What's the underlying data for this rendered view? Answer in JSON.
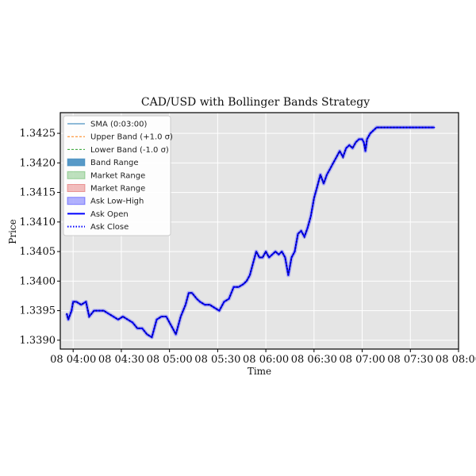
{
  "chart_data": {
    "type": "line",
    "title": "CAD/USD with Bollinger Bands Strategy",
    "xlabel": "Time",
    "ylabel": "Price",
    "x_range": [
      "03:52",
      "08:00"
    ],
    "ylim": [
      1.33885,
      1.34285
    ],
    "y_ticks": [
      1.339,
      1.3395,
      1.34,
      1.3405,
      1.341,
      1.3415,
      1.342,
      1.3425
    ],
    "y_tick_labels": [
      "1.3390",
      "1.3395",
      "1.3400",
      "1.3405",
      "1.3410",
      "1.3415",
      "1.3420",
      "1.3425"
    ],
    "x_ticks": [
      "04:00",
      "04:30",
      "05:00",
      "05:30",
      "06:00",
      "06:30",
      "07:00",
      "07:30",
      "08:00"
    ],
    "x_tick_labels": [
      "08 04:00",
      "08 04:30",
      "08 05:00",
      "08 05:30",
      "08 06:00",
      "08 06:30",
      "08 07:00",
      "08 07:30",
      "08 08:00"
    ],
    "grid": true,
    "legend_position": "top-left",
    "legend": [
      {
        "label": "SMA (0:03:00)",
        "style": "line",
        "color": "#1f77b4"
      },
      {
        "label": "Upper Band (+1.0 σ)",
        "style": "dashed",
        "color": "#ff7f0e"
      },
      {
        "label": "Lower Band (-1.0 σ)",
        "style": "dashed",
        "color": "#2ca02c"
      },
      {
        "label": "Band Range",
        "style": "patch",
        "color": "#1f77b4"
      },
      {
        "label": "Market Range",
        "style": "patch",
        "color": "#2ca02c"
      },
      {
        "label": "Market Range",
        "style": "patch",
        "color": "#d62728"
      },
      {
        "label": "Ask Low-High",
        "style": "patch",
        "color": "#0000ff"
      },
      {
        "label": "Ask Open",
        "style": "line",
        "color": "#0000ff"
      },
      {
        "label": "Ask Close",
        "style": "dotted",
        "color": "#0000ff"
      }
    ],
    "series": [
      {
        "name": "Ask Open",
        "x": [
          "03:56",
          "03:57",
          "03:59",
          "04:00",
          "04:02",
          "04:05",
          "04:08",
          "04:10",
          "04:13",
          "04:16",
          "04:19",
          "04:22",
          "04:25",
          "04:28",
          "04:31",
          "04:34",
          "04:37",
          "04:40",
          "04:43",
          "04:46",
          "04:49",
          "04:52",
          "04:55",
          "04:58",
          "05:00",
          "05:02",
          "05:04",
          "05:07",
          "05:10",
          "05:12",
          "05:14",
          "05:17",
          "05:19",
          "05:22",
          "05:25",
          "05:28",
          "05:31",
          "05:34",
          "05:37",
          "05:40",
          "05:43",
          "05:46",
          "05:48",
          "05:50",
          "05:52",
          "05:54",
          "05:56",
          "05:58",
          "06:00",
          "06:02",
          "06:04",
          "06:06",
          "06:08",
          "06:10",
          "06:12",
          "06:14",
          "06:16",
          "06:18",
          "06:20",
          "06:22",
          "06:24",
          "06:26",
          "06:28",
          "06:30",
          "06:32",
          "06:34",
          "06:36",
          "06:38",
          "06:40",
          "06:42",
          "06:44",
          "06:46",
          "06:48",
          "06:50",
          "06:52",
          "06:54",
          "06:56",
          "06:58",
          "07:00",
          "07:01",
          "07:02",
          "07:03",
          "07:05",
          "07:07",
          "07:09",
          "07:11",
          "07:13",
          "07:15",
          "07:17",
          "07:19",
          "07:21",
          "07:23",
          "07:25",
          "07:27",
          "07:29",
          "07:31",
          "07:33",
          "07:35",
          "07:37",
          "07:39",
          "07:41",
          "07:43",
          "07:45"
        ],
        "values": [
          1.33945,
          1.33935,
          1.3395,
          1.33965,
          1.33965,
          1.3396,
          1.33965,
          1.3394,
          1.3395,
          1.3395,
          1.3395,
          1.33945,
          1.3394,
          1.33935,
          1.3394,
          1.33935,
          1.3393,
          1.3392,
          1.3392,
          1.3391,
          1.33905,
          1.33935,
          1.3394,
          1.3394,
          1.3393,
          1.3392,
          1.3391,
          1.3394,
          1.3396,
          1.3398,
          1.3398,
          1.3397,
          1.33965,
          1.3396,
          1.3396,
          1.33955,
          1.3395,
          1.33965,
          1.3397,
          1.3399,
          1.3399,
          1.33995,
          1.34,
          1.3401,
          1.3403,
          1.3405,
          1.3404,
          1.3404,
          1.3405,
          1.3404,
          1.34045,
          1.3405,
          1.34045,
          1.3405,
          1.3404,
          1.3401,
          1.3404,
          1.3405,
          1.3408,
          1.34085,
          1.34075,
          1.3409,
          1.3411,
          1.3414,
          1.3416,
          1.3418,
          1.34165,
          1.3418,
          1.3419,
          1.342,
          1.3421,
          1.3422,
          1.3421,
          1.34225,
          1.3423,
          1.34225,
          1.34235,
          1.3424,
          1.3424,
          1.34235,
          1.3422,
          1.3424,
          1.3425,
          1.34255,
          1.3426,
          1.3426,
          1.3426,
          1.3426,
          1.3426,
          1.3426,
          1.3426,
          1.3426,
          1.3426,
          1.3426,
          1.3426,
          1.3426,
          1.3426,
          1.3426,
          1.3426,
          1.3426,
          1.3426,
          1.3426,
          1.3426
        ]
      }
    ]
  }
}
